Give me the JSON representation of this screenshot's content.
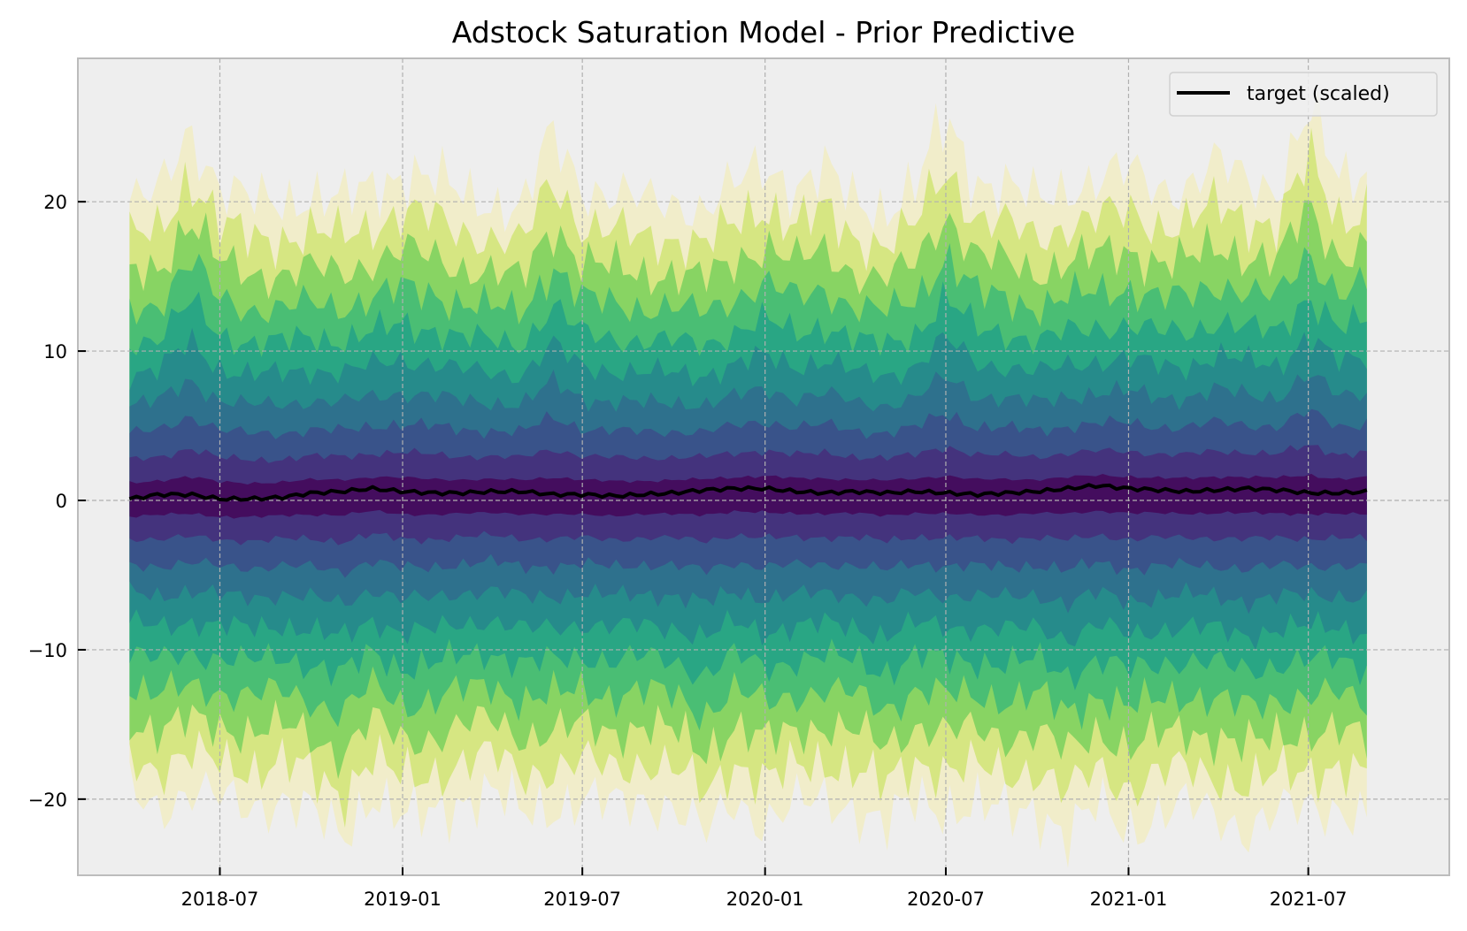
{
  "chart_data": {
    "type": "area",
    "title": "Adstock Saturation Model - Prior Predictive",
    "xlabel": "",
    "ylabel": "",
    "xlim": [
      "2018-02-08",
      "2021-11-20"
    ],
    "ylim": [
      -25.1,
      29.6
    ],
    "x_ticks": [
      "2018-07",
      "2019-01",
      "2019-07",
      "2020-01",
      "2020-07",
      "2021-01",
      "2021-07"
    ],
    "y_ticks": [
      -20,
      -10,
      0,
      10,
      20
    ],
    "y_tick_labels": [
      "−20",
      "−10",
      "0",
      "10",
      "20"
    ],
    "grid": true,
    "legend": {
      "placement": "top-right",
      "entries": [
        {
          "label": "target (scaled)",
          "color": "#000000"
        }
      ]
    },
    "colormap": "viridis",
    "band_colors": [
      "#fde725",
      "#b5de2b",
      "#6ece58",
      "#35b779",
      "#1f9e89",
      "#26828e",
      "#31688e",
      "#3e4989",
      "#482878",
      "#440154"
    ],
    "dates": [
      "2018-04-01",
      "2018-05-01",
      "2018-06-01",
      "2018-07-01",
      "2018-08-01",
      "2018-09-01",
      "2018-10-01",
      "2018-11-01",
      "2018-12-01",
      "2019-01-01",
      "2019-02-01",
      "2019-03-01",
      "2019-04-01",
      "2019-05-01",
      "2019-06-01",
      "2019-07-01",
      "2019-08-01",
      "2019-09-01",
      "2019-10-01",
      "2019-11-01",
      "2019-12-01",
      "2020-01-01",
      "2020-02-01",
      "2020-03-01",
      "2020-04-01",
      "2020-05-01",
      "2020-06-01",
      "2020-07-01",
      "2020-08-01",
      "2020-09-01",
      "2020-10-01",
      "2020-11-01",
      "2020-12-01",
      "2021-01-01",
      "2021-02-01",
      "2021-03-01",
      "2021-04-01",
      "2021-05-01",
      "2021-06-01",
      "2021-07-01",
      "2021-08-01",
      "2021-09-01"
    ],
    "series": [
      {
        "name": "target (scaled)",
        "type": "line",
        "color": "#000000",
        "values": [
          0.1,
          0.4,
          0.4,
          0.1,
          0.1,
          0.2,
          0.5,
          0.6,
          0.8,
          0.6,
          0.5,
          0.5,
          0.6,
          0.6,
          0.4,
          0.4,
          0.3,
          0.4,
          0.5,
          0.7,
          0.8,
          0.8,
          0.6,
          0.5,
          0.6,
          0.5,
          0.6,
          0.5,
          0.4,
          0.5,
          0.6,
          0.8,
          1.0,
          0.8,
          0.7,
          0.6,
          0.7,
          0.8,
          0.7,
          0.5,
          0.5,
          0.6
        ]
      },
      {
        "type": "band_upper_outer",
        "values": [
          20,
          20.5,
          25,
          21,
          20,
          20,
          20.5,
          20,
          21,
          22,
          21.5,
          20.5,
          20,
          19.5,
          24.5,
          21,
          20.5,
          20,
          20,
          19.5,
          21,
          22.5,
          21,
          22,
          20,
          19.5,
          21,
          25.5,
          21.5,
          21,
          20,
          21,
          21.5,
          22,
          21,
          21,
          22.5,
          21.5,
          21,
          26,
          21.5,
          22.5
        ]
      },
      {
        "type": "band_lower_outer",
        "values": [
          -19.5,
          -20.5,
          -19.5,
          -20,
          -20.5,
          -20,
          -21,
          -22.5,
          -19.5,
          -21.5,
          -21,
          -20,
          -19.5,
          -21,
          -20.5,
          -20,
          -20.5,
          -20,
          -20.5,
          -22.5,
          -20,
          -21.5,
          -20.5,
          -20,
          -20.5,
          -22,
          -20,
          -20.5,
          -20.5,
          -21,
          -20.5,
          -22.5,
          -20.5,
          -22,
          -21,
          -20.5,
          -21,
          -22,
          -21,
          -20.5,
          -20.5,
          -21.5
        ]
      }
    ]
  }
}
